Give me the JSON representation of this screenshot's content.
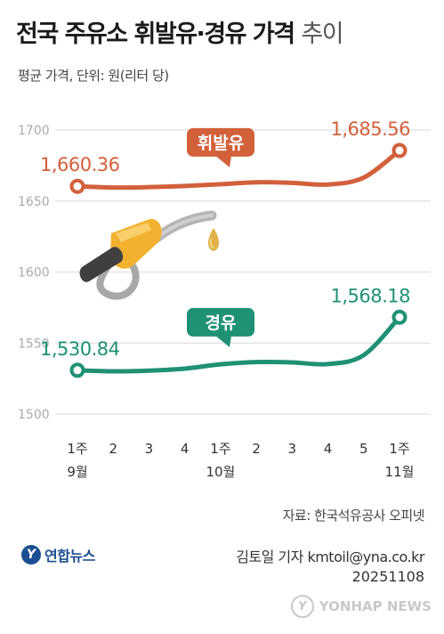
{
  "header": {
    "title_main": "전국 주유소 휘발유·경유 가격",
    "title_suffix": "추이",
    "subtitle": "평균 가격, 단위: 원(리터 당)"
  },
  "footer": {
    "source": "자료: 한국석유공사 오피넷",
    "logo_text": "연합뉴스",
    "reporter": "김토일 기자 kmtoil@yna.co.kr",
    "date": "20251108",
    "watermark": "YONHAP NEWS"
  },
  "colors": {
    "gasoline": "#d2603a",
    "diesel": "#1f9174",
    "grid": "#d9d9d9",
    "axis_text": "#aaaaaa"
  },
  "chart_data": {
    "type": "line",
    "title": "전국 주유소 휘발유·경유 가격 추이",
    "ylabel": "평균 가격, 단위: 원(리터 당)",
    "ylim": [
      1500,
      1700
    ],
    "yticks": [
      1500,
      1550,
      1600,
      1650,
      1700
    ],
    "grid": true,
    "categories": [
      "1주",
      "2",
      "3",
      "4",
      "1주",
      "2",
      "3",
      "4",
      "5",
      "1주"
    ],
    "month_labels": [
      {
        "index": 0,
        "label": "9월"
      },
      {
        "index": 4,
        "label": "10월"
      },
      {
        "index": 9,
        "label": "11월"
      }
    ],
    "series": [
      {
        "name": "휘발유",
        "color_key": "gasoline",
        "values": [
          1660.36,
          1659.5,
          1659.8,
          1660.6,
          1661.8,
          1663.2,
          1662.8,
          1661.6,
          1666.5,
          1685.56
        ],
        "labeled_points": [
          {
            "index": 0,
            "label": "1,660.36"
          },
          {
            "index": 9,
            "label": "1,685.56"
          }
        ]
      },
      {
        "name": "경유",
        "color_key": "diesel",
        "values": [
          1530.84,
          1530.1,
          1530.6,
          1532.0,
          1535.0,
          1536.6,
          1536.4,
          1535.2,
          1541.5,
          1568.18
        ],
        "labeled_points": [
          {
            "index": 0,
            "label": "1,530.84"
          },
          {
            "index": 9,
            "label": "1,568.18"
          }
        ]
      }
    ]
  }
}
